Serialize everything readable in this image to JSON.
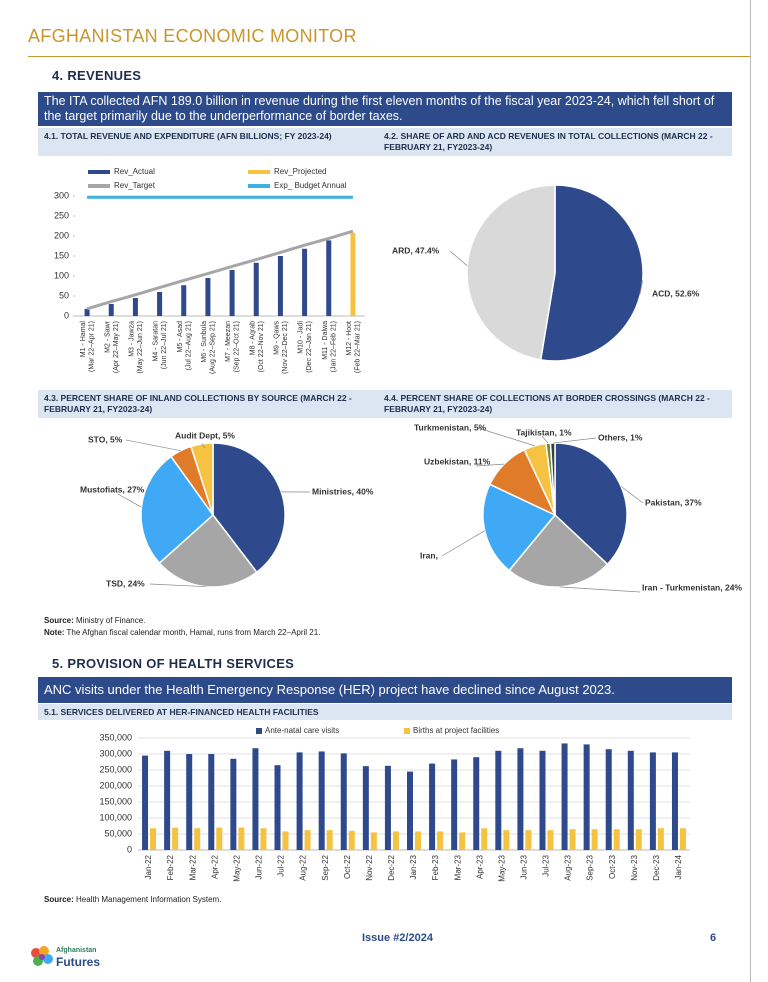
{
  "header": {
    "title": "AFGHANISTAN ECONOMIC MONITOR"
  },
  "sections": [
    {
      "heading": "4.  REVENUES",
      "summary": "The ITA collected AFN 189.0 billion in revenue during the first eleven months of the fiscal year 2023-24, which fell short of the target primarily due to the underperformance of border taxes.",
      "source_label": "Source:",
      "source": "Ministry of Finance.",
      "note_label": "Note:",
      "note": "The Afghan fiscal calendar month, Hamal, runs from March 22–April 21."
    },
    {
      "heading": "5.  PROVISION OF HEALTH SERVICES",
      "summary": "ANC visits under the Health Emergency Response (HER) project have declined since August 2023.",
      "source_label": "Source:",
      "source": "Health Management Information System."
    }
  ],
  "chart_data": [
    {
      "type": "bar",
      "title": "4.1. TOTAL REVENUE AND EXPENDITURE (AFN BILLIONS; FY 2023-24)",
      "categories": [
        "M1 - Hamal (Mar 22–Apr 21)",
        "M2 - Sawr (Apr 22–May 21)",
        "M3 - Jawza (May 22–Jun 21)",
        "M4 - Saratan (Jun 22–Jul 21)",
        "M5 - Asad (Jul 22–Aug 21)",
        "M6 - Sunbula (Aug 22–Sep 21)",
        "M7 - Meezan (Sep 22–Oct 21)",
        "M8 - Aqrab (Oct 22–Nov 21)",
        "M9 - Qaws (Nov 22–Dec 21)",
        "M10 - Jadi (Dec 22–Jan 21)",
        "M11 - Dalwa (Jan 22–Feb 21)",
        "M12 - Hoot (Feb 22–Mar 21)"
      ],
      "series": [
        {
          "name": "Rev_Actual",
          "type": "bar",
          "color": "#2e4a8c",
          "values": [
            18,
            30,
            45,
            60,
            77,
            95,
            115,
            133,
            150,
            168,
            189,
            null
          ]
        },
        {
          "name": "Rev_Projected",
          "type": "bar",
          "color": "#f5c242",
          "values": [
            null,
            null,
            null,
            null,
            null,
            null,
            null,
            null,
            null,
            null,
            null,
            208
          ]
        },
        {
          "name": "Rev_Target",
          "type": "line",
          "color": "#a6a6a6",
          "values": [
            18,
            36,
            53,
            71,
            89,
            106,
            124,
            141,
            159,
            177,
            194,
            212
          ]
        },
        {
          "name": "Exp_ Budget Annual",
          "type": "line",
          "color": "#3fb0e0",
          "values": [
            297,
            297,
            297,
            297,
            297,
            297,
            297,
            297,
            297,
            297,
            297,
            297
          ]
        }
      ],
      "ylim": [
        0,
        300
      ],
      "yticks": [
        0,
        50,
        100,
        150,
        200,
        250,
        300
      ],
      "grid": false,
      "legend": "top"
    },
    {
      "type": "pie",
      "title": "4.2. SHARE OF ARD AND ACD REVENUES IN TOTAL COLLECTIONS (MARCH 22 - FEBRUARY 21, FY2023-24)",
      "categories": [
        "ACD",
        "ARD"
      ],
      "values": [
        52.6,
        47.4
      ],
      "value_labels": [
        "ACD, 52.6%",
        "ARD, 47.4%"
      ],
      "colors": [
        "#2e4a8c",
        "#d9d9d9"
      ]
    },
    {
      "type": "pie",
      "title": "4.3. PERCENT SHARE OF INLAND COLLECTIONS BY SOURCE (MARCH 22 - FEBRUARY 21, FY2023-24)",
      "categories": [
        "Ministries",
        "TSD",
        "Mustofiats",
        "STO",
        "Audit Dept"
      ],
      "values": [
        40,
        24,
        27,
        5,
        5
      ],
      "value_labels": [
        "Ministries, 40%",
        "TSD, 24%",
        "Mustofiats, 27%",
        "STO, 5%",
        "Audit Dept, 5%"
      ],
      "colors": [
        "#2e4a8c",
        "#a6a6a6",
        "#3fa9f5",
        "#e07b2a",
        "#f5c242"
      ]
    },
    {
      "type": "pie",
      "title": "4.4. PERCENT SHARE OF COLLECTIONS AT BORDER CROSSINGS (MARCH 22 - FEBRUARY 21, FY2023-24)",
      "categories": [
        "Pakistan",
        "Iran - Turkmenistan",
        "Iran",
        "Uzbekistan",
        "Turkmenistan",
        "Tajikistan",
        "Others"
      ],
      "values": [
        37,
        24,
        21,
        11,
        5,
        1,
        1
      ],
      "value_labels": [
        "Pakistan, 37%",
        "Iran - Turkmenistan, 24%",
        "Iran,",
        "Uzbekistan, 11%",
        "Turkmenistan, 5%",
        "Tajikistan, 1%",
        "Others, 1%"
      ],
      "colors": [
        "#2e4a8c",
        "#a6a6a6",
        "#3fa9f5",
        "#e07b2a",
        "#f5c242",
        "#6d8a3a",
        "#3b3b3b"
      ]
    },
    {
      "type": "bar",
      "title": "5.1. SERVICES DELIVERED AT HER-FINANCED HEALTH FACILITIES",
      "categories": [
        "Jan-22",
        "Feb-22",
        "Mar-22",
        "Apr-22",
        "May-22",
        "Jun-22",
        "Jul-22",
        "Aug-22",
        "Sep-22",
        "Oct-22",
        "Nov-22",
        "Dec-22",
        "Jan-23",
        "Feb-23",
        "Mar-23",
        "Apr-23",
        "May-23",
        "Jun-23",
        "Jul-23",
        "Aug-23",
        "Sep-23",
        "Oct-23",
        "Nov-23",
        "Dec-23",
        "Jan-24"
      ],
      "series": [
        {
          "name": "Ante-natal care visits",
          "type": "bar",
          "color": "#2e4a8c",
          "values": [
            295000,
            310000,
            300000,
            300000,
            285000,
            318000,
            265000,
            305000,
            308000,
            302000,
            262000,
            263000,
            245000,
            270000,
            283000,
            290000,
            310000,
            318000,
            310000,
            333000,
            330000,
            315000,
            310000,
            305000,
            305000
          ]
        },
        {
          "name": "Births at project facilities",
          "type": "bar",
          "color": "#f5c242",
          "values": [
            68000,
            70000,
            68000,
            70000,
            70000,
            68000,
            58000,
            62000,
            62000,
            60000,
            55000,
            58000,
            58000,
            58000,
            55000,
            68000,
            62000,
            62000,
            62000,
            65000,
            65000,
            65000,
            65000,
            68000,
            68000
          ]
        }
      ],
      "ylim": [
        0,
        350000
      ],
      "yticks": [
        0,
        {
          "value": 50000,
          "label": "50,000"
        },
        {
          "value": 100000,
          "label": "100,000"
        },
        {
          "value": 150000,
          "label": "150,000"
        },
        {
          "value": 200000,
          "label": "200,000"
        },
        {
          "value": 250000,
          "label": "250,000"
        },
        {
          "value": 300000,
          "label": "300,000"
        },
        {
          "value": 350000,
          "label": "350,000"
        }
      ],
      "grid": true,
      "legend": "top"
    }
  ],
  "footer": {
    "issue": "Issue #2/2024",
    "page": 6,
    "logo_line1": "Afghanistan",
    "logo_line2": "Futures"
  }
}
